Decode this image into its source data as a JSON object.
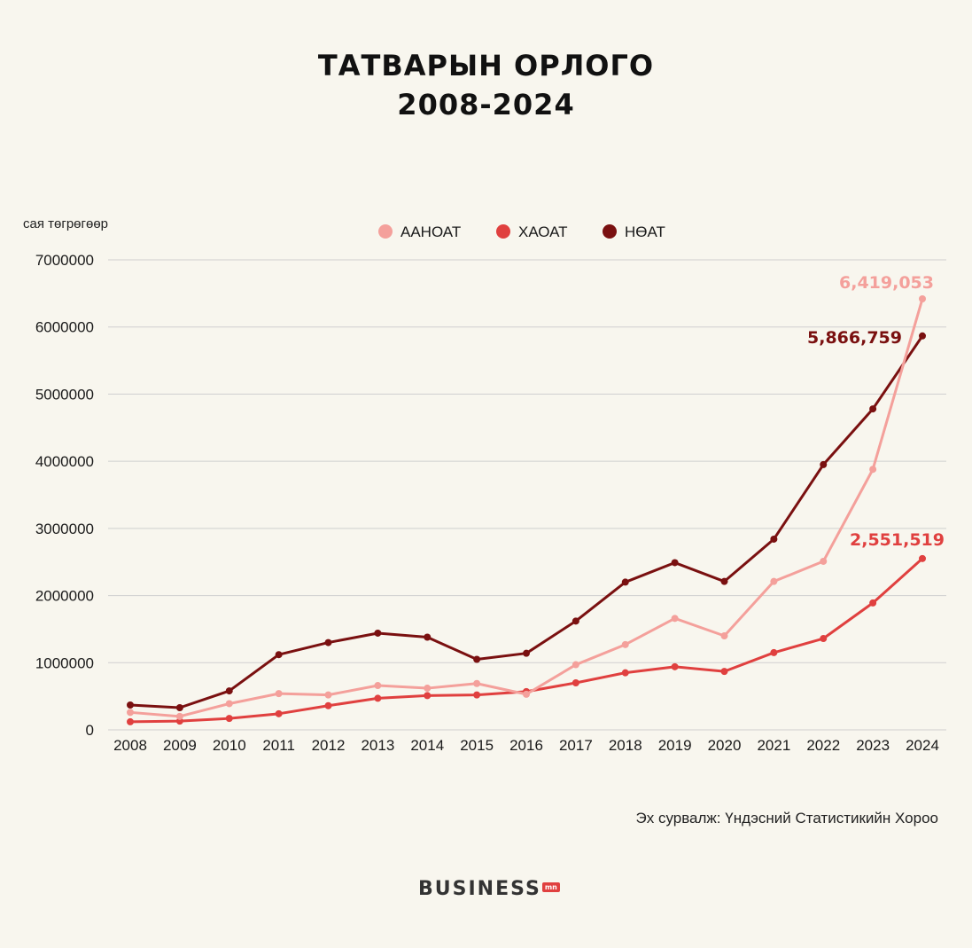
{
  "colors": {
    "aanoat": "#f4a09b",
    "haoat": "#e0403f",
    "noat": "#7a1010",
    "grid": "#cfcfcf",
    "background": "#f8f6ee"
  },
  "header": {
    "title_line1": "ТАТВАРЫН ОРЛОГО",
    "title_line2": "2008-2024"
  },
  "footer": {
    "source": "Эх сурвалж: Үндэсний Статистикийн Хороо",
    "brand": "BUSINESS",
    "brand_badge": "mn"
  },
  "chart_data": {
    "type": "line",
    "title": "ТАТВАРЫН ОРЛОГО 2008-2024",
    "ylabel": "сая төгрөгөөр",
    "xlabel": "",
    "ylim": [
      0,
      7000000
    ],
    "yticks": [
      "0",
      "1000000",
      "2000000",
      "3000000",
      "4000000",
      "5000000",
      "6000000",
      "7000000"
    ],
    "grid": true,
    "legend_position": "top-center",
    "x": [
      "2008",
      "2009",
      "2010",
      "2011",
      "2012",
      "2013",
      "2014",
      "2015",
      "2016",
      "2017",
      "2018",
      "2019",
      "2020",
      "2021",
      "2022",
      "2023",
      "2024"
    ],
    "series": [
      {
        "name": "ААНОАТ",
        "color": "#f4a09b",
        "values": [
          260000,
          200000,
          390000,
          540000,
          520000,
          660000,
          620000,
          690000,
          530000,
          970000,
          1270000,
          1660000,
          1400000,
          2210000,
          2510000,
          3880000,
          6419053
        ],
        "end_label": "6,419,053"
      },
      {
        "name": "ХАОАТ",
        "color": "#e0403f",
        "values": [
          120000,
          130000,
          170000,
          240000,
          360000,
          470000,
          510000,
          520000,
          570000,
          700000,
          850000,
          940000,
          870000,
          1150000,
          1360000,
          1890000,
          2551519
        ],
        "end_label": "2,551,519"
      },
      {
        "name": "НӨАТ",
        "color": "#7a1010",
        "values": [
          370000,
          330000,
          580000,
          1120000,
          1300000,
          1440000,
          1380000,
          1050000,
          1140000,
          1620000,
          2200000,
          2490000,
          2210000,
          2840000,
          3950000,
          4780000,
          5866759
        ],
        "end_label": "5,866,759"
      }
    ]
  }
}
